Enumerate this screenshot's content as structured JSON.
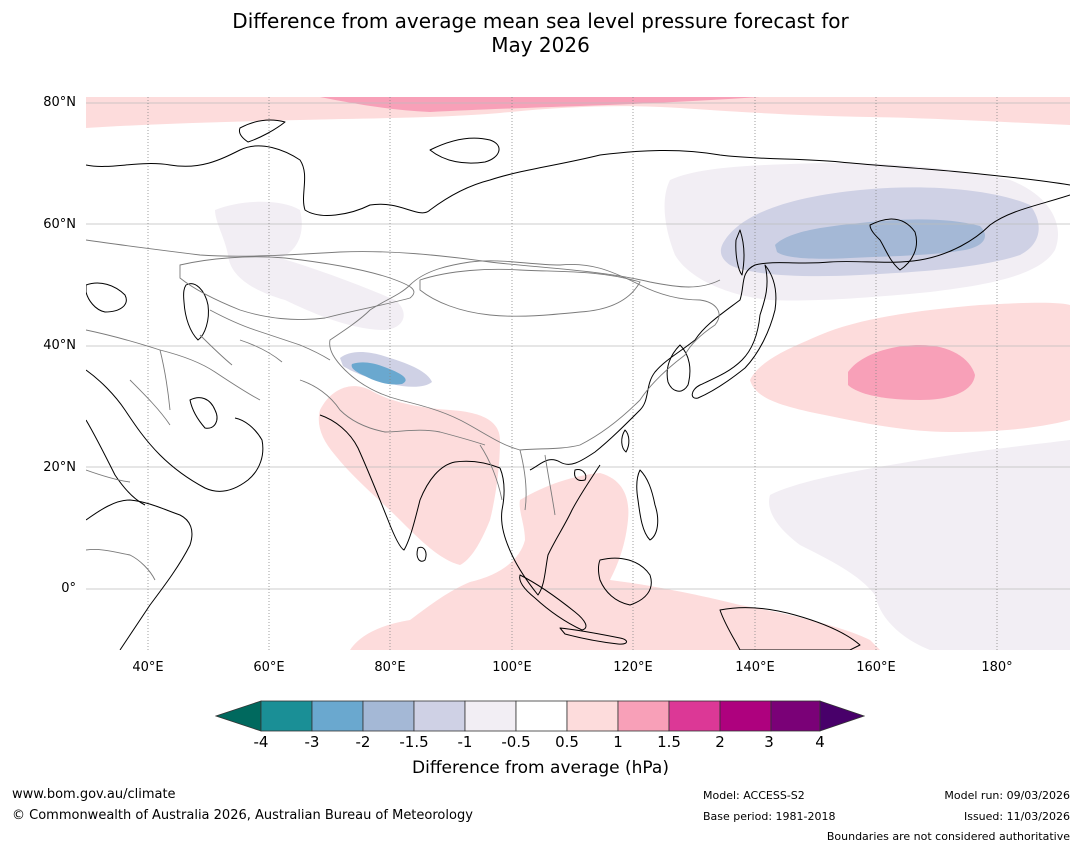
{
  "title_line1": "Difference from average mean sea level pressure forecast for",
  "title_line2": "May 2026",
  "map": {
    "lat_labels": [
      "80°N",
      "60°N",
      "40°N",
      "20°N",
      "0°"
    ],
    "lon_labels": [
      "40°E",
      "60°E",
      "80°E",
      "100°E",
      "120°E",
      "140°E",
      "160°E",
      "180°"
    ],
    "lat_range": [
      -10,
      81
    ],
    "lon_range": [
      30,
      192
    ],
    "anomaly_regions": [
      {
        "name": "arctic-positive",
        "level": "0.5 to 1",
        "color": "#fddcdc"
      },
      {
        "name": "arctic-core-positive",
        "level": "1 to 1.5",
        "color": "#f8a0b8"
      },
      {
        "name": "north-pacific-high",
        "level": "1 to 1.5",
        "color": "#f8a0b8"
      },
      {
        "name": "siberia-low",
        "level": "-2 to -1.5",
        "color": "#a4b8d6"
      },
      {
        "name": "tibet-low",
        "level": "-3 to -2",
        "color": "#6aa8cf"
      },
      {
        "name": "indian-ocean-positive",
        "level": "0.5 to 1",
        "color": "#fddcdc"
      }
    ]
  },
  "colorbar": {
    "title": "Difference from average (hPa)",
    "ticks": [
      "-4",
      "-3",
      "-2",
      "-1.5",
      "-1",
      "-0.5",
      "0.5",
      "1",
      "1.5",
      "2",
      "3",
      "4"
    ],
    "colors": [
      "#1a8f96",
      "#6aa8cf",
      "#a4b8d6",
      "#cfd1e5",
      "#f2eef4",
      "#ffffff",
      "#fddcdc",
      "#f8a0b8",
      "#dc3896",
      "#ae017e",
      "#7a0177"
    ],
    "under_color": "#00695e",
    "over_color": "#48006a"
  },
  "footer": {
    "website": "www.bom.gov.au/climate",
    "copyright": "© Commonwealth of Australia 2026, Australian Bureau of Meteorology",
    "model": "Model: ACCESS-S2",
    "base_period": "Base period: 1981-2018",
    "model_run": "Model run: 09/03/2026",
    "issued": "Issued: 11/03/2026",
    "disclaimer": "Boundaries are not considered authoritative"
  }
}
